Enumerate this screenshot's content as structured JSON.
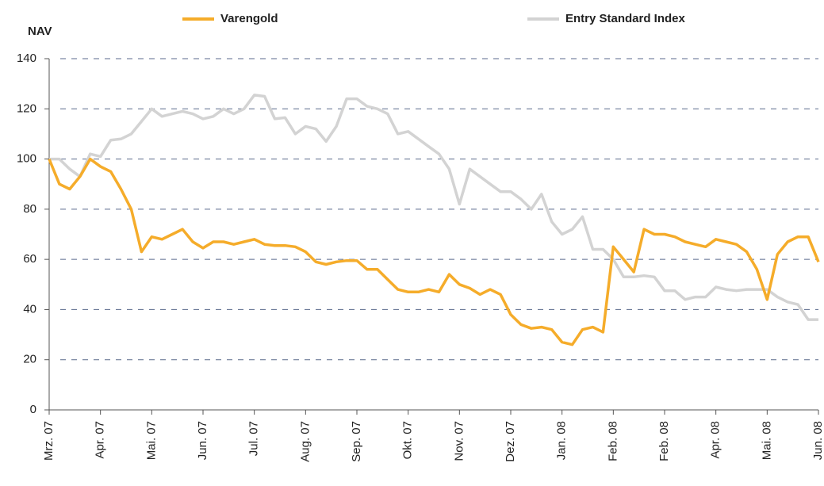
{
  "chart_data": {
    "type": "line",
    "y_label": "NAV",
    "categories": [
      "Mrz. 07",
      null,
      null,
      null,
      null,
      "Apr. 07",
      null,
      null,
      null,
      null,
      "Mai. 07",
      null,
      null,
      null,
      null,
      "Jun. 07",
      null,
      null,
      null,
      null,
      "Jul. 07",
      null,
      null,
      null,
      null,
      "Aug. 07",
      null,
      null,
      null,
      null,
      "Sep. 07",
      null,
      null,
      null,
      null,
      "Okt. 07",
      null,
      null,
      null,
      null,
      "Nov. 07",
      null,
      null,
      null,
      null,
      "Dez. 07",
      null,
      null,
      null,
      null,
      "Jan. 08",
      null,
      null,
      null,
      null,
      "Feb. 08",
      null,
      null,
      null,
      null,
      "Feb. 08",
      null,
      null,
      null,
      null,
      "Apr. 08",
      null,
      null,
      null,
      null,
      "Mai. 08",
      null,
      null,
      null,
      null,
      "Jun. 08"
    ],
    "series": [
      {
        "name": "Varengold",
        "color": "#f5ac2a",
        "values": [
          100,
          90,
          88,
          93,
          100,
          97,
          95,
          88,
          80,
          63,
          69,
          68,
          70,
          72,
          67,
          64.5,
          67,
          67,
          66,
          67,
          68,
          66,
          65.5,
          65.5,
          65,
          63,
          59,
          58,
          59,
          59.5,
          59.5,
          56,
          56,
          52,
          48,
          47,
          47,
          48,
          47,
          54,
          50,
          48.5,
          46,
          48,
          46,
          38,
          34,
          32.5,
          33,
          32,
          27,
          26,
          32,
          33,
          31,
          65,
          60,
          55,
          72,
          70,
          70,
          69,
          67,
          66,
          65,
          68,
          67,
          66,
          63,
          56,
          44,
          62,
          67,
          69,
          69,
          59
        ]
      },
      {
        "name": "Entry Standard Index",
        "color": "#d3d3d3",
        "values": [
          100,
          100,
          96,
          93,
          102,
          101,
          107.5,
          108,
          110,
          115,
          120,
          117,
          118,
          119,
          118,
          116,
          117,
          120,
          118,
          120,
          125.5,
          125,
          116,
          116.5,
          110,
          113,
          112,
          107,
          113,
          124,
          124,
          121,
          120,
          118,
          110,
          111,
          108,
          105,
          102,
          96,
          82,
          96,
          93,
          90,
          87,
          87,
          84,
          80,
          86,
          75,
          70,
          72,
          77,
          64,
          64,
          60,
          53,
          53,
          53.5,
          53,
          47.5,
          47.5,
          44,
          45,
          45,
          49,
          48,
          47.5,
          48,
          48,
          48,
          45,
          43,
          42,
          36,
          36
        ]
      }
    ],
    "ylim": [
      0,
      140
    ],
    "yticks": [
      0,
      20,
      40,
      60,
      80,
      100,
      120,
      140
    ],
    "grid": true
  }
}
